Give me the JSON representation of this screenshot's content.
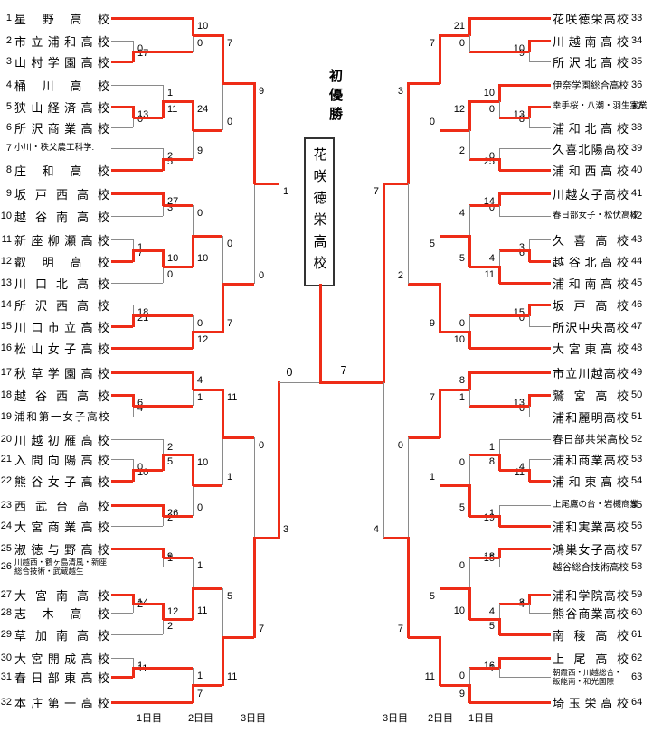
{
  "header": {
    "achievement": "初優勝",
    "champion": "花咲徳栄高校",
    "final_score_left": "0",
    "final_score_right": "7",
    "final_winner": "right"
  },
  "colors": {
    "winner": "#ee2c17",
    "line": "#8a8a8a",
    "text": "#000000"
  },
  "days": {
    "left": [
      "1日目",
      "2日目",
      "3日目"
    ],
    "right": [
      "3日目",
      "2日目",
      "1日目"
    ]
  },
  "teams": [
    {
      "num": "1",
      "name": "星野高校"
    },
    {
      "num": "2",
      "name": "市立浦和高校"
    },
    {
      "num": "3",
      "name": "山村学園高校"
    },
    {
      "num": "4",
      "name": "桶川高校"
    },
    {
      "num": "5",
      "name": "狭山経済高校"
    },
    {
      "num": "6",
      "name": "所沢商業高校"
    },
    {
      "num": "7",
      "name": "小川・秩父農工科学.",
      "small": true
    },
    {
      "num": "8",
      "name": "庄和高校"
    },
    {
      "num": "9",
      "name": "坂戸西高校"
    },
    {
      "num": "10",
      "name": "越谷南高校"
    },
    {
      "num": "11",
      "name": "新座柳瀬高校"
    },
    {
      "num": "12",
      "name": "叡明高校"
    },
    {
      "num": "13",
      "name": "川口北高校"
    },
    {
      "num": "14",
      "name": "所沢西高校"
    },
    {
      "num": "15",
      "name": "川口市立高校"
    },
    {
      "num": "16",
      "name": "松山女子高校"
    },
    {
      "num": "17",
      "name": "秋草学園高校"
    },
    {
      "num": "18",
      "name": "越谷西高校"
    },
    {
      "num": "19",
      "name": "浦和第一女子高校"
    },
    {
      "num": "20",
      "name": "川越初雁高校"
    },
    {
      "num": "21",
      "name": "入間向陽高校"
    },
    {
      "num": "22",
      "name": "熊谷女子高校"
    },
    {
      "num": "23",
      "name": "西武台高校"
    },
    {
      "num": "24",
      "name": "大宮商業高校"
    },
    {
      "num": "25",
      "name": "淑徳与野高校"
    },
    {
      "num": "26",
      "name": "川越西・鶴ヶ島清風・新座総合技術・武蔵越生",
      "lines": [
        "川越西・鶴ヶ島清風・新座",
        "総合技術・武蔵越生"
      ]
    },
    {
      "num": "27",
      "name": "大宮南高校"
    },
    {
      "num": "28",
      "name": "志木高校"
    },
    {
      "num": "29",
      "name": "草加南高校"
    },
    {
      "num": "30",
      "name": "大宮開成高校"
    },
    {
      "num": "31",
      "name": "春日部東高校"
    },
    {
      "num": "32",
      "name": "本庄第一高校"
    },
    {
      "num": "33",
      "name": "花咲徳栄高校"
    },
    {
      "num": "34",
      "name": "川越南高校"
    },
    {
      "num": "35",
      "name": "所沢北高校"
    },
    {
      "num": "36",
      "name": "伊奈学園総合高校"
    },
    {
      "num": "37",
      "name": "幸手桜・八潮・羽生実業",
      "small": true
    },
    {
      "num": "38",
      "name": "浦和北高校"
    },
    {
      "num": "39",
      "name": "久喜北陽高校"
    },
    {
      "num": "40",
      "name": "浦和西高校"
    },
    {
      "num": "41",
      "name": "川越女子高校"
    },
    {
      "num": "42",
      "name": "春日部女子・松伏高校",
      "small": true
    },
    {
      "num": "43",
      "name": "久喜高校"
    },
    {
      "num": "44",
      "name": "越谷北高校"
    },
    {
      "num": "45",
      "name": "浦和南高校"
    },
    {
      "num": "46",
      "name": "坂戸高校"
    },
    {
      "num": "47",
      "name": "所沢中央高校"
    },
    {
      "num": "48",
      "name": "大宮東高校"
    },
    {
      "num": "49",
      "name": "市立川越高校"
    },
    {
      "num": "50",
      "name": "鷲宮高校"
    },
    {
      "num": "51",
      "name": "浦和麗明高校"
    },
    {
      "num": "52",
      "name": "春日部共栄高校"
    },
    {
      "num": "53",
      "name": "浦和商業高校"
    },
    {
      "num": "54",
      "name": "浦和東高校"
    },
    {
      "num": "55",
      "name": "上尾鷹の台・岩槻商業",
      "small": true
    },
    {
      "num": "56",
      "name": "浦和実業高校"
    },
    {
      "num": "57",
      "name": "鴻巣女子高校"
    },
    {
      "num": "58",
      "name": "越谷総合技術高校"
    },
    {
      "num": "59",
      "name": "浦和学院高校"
    },
    {
      "num": "60",
      "name": "熊谷商業高校"
    },
    {
      "num": "61",
      "name": "南稜高校"
    },
    {
      "num": "62",
      "name": "上尾高校"
    },
    {
      "num": "63",
      "name": "朝霞西・川越総合・飯能南・和光国際",
      "lines": [
        "朝霞西・川越総合・",
        "飯能南・和光国際"
      ]
    },
    {
      "num": "64",
      "name": "埼玉栄高校"
    }
  ],
  "matches": [
    {
      "id": "m1",
      "side": "L",
      "r": 1,
      "top": "t2",
      "bot": "t3",
      "s_top": "0",
      "s_bot": "17",
      "win": "bot"
    },
    {
      "id": "m2",
      "side": "L",
      "r": 3,
      "top": "t1",
      "bot": "m1",
      "s_top": "10",
      "s_bot": "0",
      "win": "top"
    },
    {
      "id": "m3",
      "side": "L",
      "r": 1,
      "top": "t5",
      "bot": "t6",
      "s_top": "13",
      "s_bot": "0",
      "win": "top"
    },
    {
      "id": "m4",
      "side": "L",
      "r": 2,
      "top": "t4",
      "bot": "m3",
      "s_top": "1",
      "s_bot": "11",
      "win": "bot"
    },
    {
      "id": "m5",
      "side": "L",
      "r": 2,
      "top": "t7",
      "bot": "t8",
      "s_top": "2",
      "s_bot": "5",
      "win": "bot"
    },
    {
      "id": "m6",
      "side": "L",
      "r": 3,
      "top": "m4",
      "bot": "m5",
      "s_top": "24",
      "s_bot": "9",
      "win": "top"
    },
    {
      "id": "m7",
      "side": "L",
      "r": 4,
      "top": "m2",
      "bot": "m6",
      "s_top": "7",
      "s_bot": "0",
      "win": "top"
    },
    {
      "id": "m8",
      "side": "L",
      "r": 2,
      "top": "t9",
      "bot": "t10",
      "s_top": "27",
      "s_bot": "3",
      "win": "top"
    },
    {
      "id": "m9",
      "side": "L",
      "r": 1,
      "top": "t11",
      "bot": "t12",
      "s_top": "1",
      "s_bot": "7",
      "win": "bot"
    },
    {
      "id": "m10",
      "side": "L",
      "r": 2,
      "top": "m9",
      "bot": "t13",
      "s_top": "10",
      "s_bot": "0",
      "win": "top"
    },
    {
      "id": "m11",
      "side": "L",
      "r": 3,
      "top": "m8",
      "bot": "m10",
      "s_top": "0",
      "s_bot": "10",
      "win": "bot"
    },
    {
      "id": "m12",
      "side": "L",
      "r": 1,
      "top": "t14",
      "bot": "t15",
      "s_top": "18",
      "s_bot": "21",
      "win": "bot"
    },
    {
      "id": "m13",
      "side": "L",
      "r": 3,
      "top": "m12",
      "bot": "t16",
      "s_top": "0",
      "s_bot": "12",
      "win": "bot"
    },
    {
      "id": "m14",
      "side": "L",
      "r": 4,
      "top": "m11",
      "bot": "m13",
      "s_top": "0",
      "s_bot": "7",
      "win": "bot"
    },
    {
      "id": "m15",
      "side": "L",
      "r": 5,
      "top": "m7",
      "bot": "m14",
      "s_top": "9",
      "s_bot": "0",
      "win": "top"
    },
    {
      "id": "m16",
      "side": "L",
      "r": 1,
      "top": "t18",
      "bot": "t19",
      "s_top": "6",
      "s_bot": "4",
      "win": "top"
    },
    {
      "id": "m17",
      "side": "L",
      "r": 3,
      "top": "t17",
      "bot": "m16",
      "s_top": "4",
      "s_bot": "1",
      "win": "top"
    },
    {
      "id": "m18",
      "side": "L",
      "r": 1,
      "top": "t21",
      "bot": "t22",
      "s_top": "0",
      "s_bot": "10",
      "win": "bot"
    },
    {
      "id": "m19",
      "side": "L",
      "r": 2,
      "top": "t20",
      "bot": "m18",
      "s_top": "2",
      "s_bot": "5",
      "win": "bot"
    },
    {
      "id": "m20",
      "side": "L",
      "r": 2,
      "top": "t23",
      "bot": "t24",
      "s_top": "26",
      "s_bot": "2",
      "win": "top"
    },
    {
      "id": "m21",
      "side": "L",
      "r": 3,
      "top": "m19",
      "bot": "m20",
      "s_top": "10",
      "s_bot": "0",
      "win": "top"
    },
    {
      "id": "m22",
      "side": "L",
      "r": 4,
      "top": "m17",
      "bot": "m21",
      "s_top": "11",
      "s_bot": "1",
      "win": "top"
    },
    {
      "id": "m23",
      "side": "L",
      "r": 2,
      "top": "t25",
      "bot": "t26",
      "s_top": "9",
      "s_bot": "1",
      "win": "top"
    },
    {
      "id": "m24",
      "side": "L",
      "r": 1,
      "top": "t27",
      "bot": "t28",
      "s_top": "14",
      "s_bot": "2",
      "win": "top"
    },
    {
      "id": "m25",
      "side": "L",
      "r": 2,
      "top": "m24",
      "bot": "t29",
      "s_top": "12",
      "s_bot": "2",
      "win": "top"
    },
    {
      "id": "m26",
      "side": "L",
      "r": 3,
      "top": "m23",
      "bot": "m25",
      "s_top": "1",
      "s_bot": "11",
      "win": "bot"
    },
    {
      "id": "m27",
      "side": "L",
      "r": 1,
      "top": "t30",
      "bot": "t31",
      "s_top": "1",
      "s_bot": "11",
      "win": "bot"
    },
    {
      "id": "m28",
      "side": "L",
      "r": 3,
      "top": "m27",
      "bot": "t32",
      "s_top": "1",
      "s_bot": "7",
      "win": "bot"
    },
    {
      "id": "m29",
      "side": "L",
      "r": 4,
      "top": "m26",
      "bot": "m28",
      "s_top": "5",
      "s_bot": "11",
      "win": "bot"
    },
    {
      "id": "m30",
      "side": "L",
      "r": 5,
      "top": "m22",
      "bot": "m29",
      "s_top": "0",
      "s_bot": "7",
      "win": "bot"
    },
    {
      "id": "m31",
      "side": "L",
      "r": 6,
      "top": "m15",
      "bot": "m30",
      "s_top": "1",
      "s_bot": "3",
      "win": "bot",
      "to_final": true
    },
    {
      "id": "n1",
      "side": "R",
      "r": 1,
      "top": "t34",
      "bot": "t35",
      "s_top": "10",
      "s_bot": "9",
      "win": "top"
    },
    {
      "id": "n2",
      "side": "R",
      "r": 3,
      "top": "t33",
      "bot": "n1",
      "s_top": "21",
      "s_bot": "0",
      "win": "top"
    },
    {
      "id": "n3",
      "side": "R",
      "r": 1,
      "top": "t37",
      "bot": "t38",
      "s_top": "13",
      "s_bot": "8",
      "win": "top"
    },
    {
      "id": "n4",
      "side": "R",
      "r": 2,
      "top": "t36",
      "bot": "n3",
      "s_top": "10",
      "s_bot": "0",
      "win": "top"
    },
    {
      "id": "n5",
      "side": "R",
      "r": 2,
      "top": "t39",
      "bot": "t40",
      "s_top": "0",
      "s_bot": "25",
      "win": "bot"
    },
    {
      "id": "n6",
      "side": "R",
      "r": 3,
      "top": "n4",
      "bot": "n5",
      "s_top": "12",
      "s_bot": "2",
      "win": "top"
    },
    {
      "id": "n7",
      "side": "R",
      "r": 4,
      "top": "n2",
      "bot": "n6",
      "s_top": "7",
      "s_bot": "0",
      "win": "top"
    },
    {
      "id": "n8",
      "side": "R",
      "r": 2,
      "top": "t41",
      "bot": "t42",
      "s_top": "14",
      "s_bot": "0",
      "win": "top"
    },
    {
      "id": "n9",
      "side": "R",
      "r": 1,
      "top": "t43",
      "bot": "t44",
      "s_top": "3",
      "s_bot": "6",
      "win": "bot"
    },
    {
      "id": "n10",
      "side": "R",
      "r": 2,
      "top": "n9",
      "bot": "t45",
      "s_top": "4",
      "s_bot": "11",
      "win": "bot"
    },
    {
      "id": "n11",
      "side": "R",
      "r": 3,
      "top": "n8",
      "bot": "n10",
      "s_top": "4",
      "s_bot": "5",
      "win": "bot"
    },
    {
      "id": "n12",
      "side": "R",
      "r": 1,
      "top": "t46",
      "bot": "t47",
      "s_top": "15",
      "s_bot": "0",
      "win": "top"
    },
    {
      "id": "n13",
      "side": "R",
      "r": 3,
      "top": "n12",
      "bot": "t48",
      "s_top": "0",
      "s_bot": "10",
      "win": "bot"
    },
    {
      "id": "n14",
      "side": "R",
      "r": 4,
      "top": "n11",
      "bot": "n13",
      "s_top": "5",
      "s_bot": "9",
      "win": "bot"
    },
    {
      "id": "n15",
      "side": "R",
      "r": 5,
      "top": "n7",
      "bot": "n14",
      "s_top": "3",
      "s_bot": "2",
      "win": "top"
    },
    {
      "id": "n16",
      "side": "R",
      "r": 1,
      "top": "t50",
      "bot": "t51",
      "s_top": "13",
      "s_bot": "6",
      "win": "top"
    },
    {
      "id": "n17",
      "side": "R",
      "r": 3,
      "top": "t49",
      "bot": "n16",
      "s_top": "8",
      "s_bot": "1",
      "win": "top"
    },
    {
      "id": "n18",
      "side": "R",
      "r": 1,
      "top": "t53",
      "bot": "t54",
      "s_top": "4",
      "s_bot": "11",
      "win": "bot"
    },
    {
      "id": "n19",
      "side": "R",
      "r": 2,
      "top": "t52",
      "bot": "n18",
      "s_top": "1",
      "s_bot": "8",
      "win": "bot"
    },
    {
      "id": "n20",
      "side": "R",
      "r": 2,
      "top": "t55",
      "bot": "t56",
      "s_top": "1",
      "s_bot": "19",
      "win": "bot"
    },
    {
      "id": "n21",
      "side": "R",
      "r": 3,
      "top": "n19",
      "bot": "n20",
      "s_top": "0",
      "s_bot": "5",
      "win": "bot"
    },
    {
      "id": "n22",
      "side": "R",
      "r": 4,
      "top": "n17",
      "bot": "n21",
      "s_top": "7",
      "s_bot": "1",
      "win": "top"
    },
    {
      "id": "n23",
      "side": "R",
      "r": 2,
      "top": "t57",
      "bot": "t58",
      "s_top": "18",
      "s_bot": "15",
      "win": "top"
    },
    {
      "id": "n24",
      "side": "R",
      "r": 1,
      "top": "t59",
      "bot": "t60",
      "s_top": "8",
      "s_bot": "4",
      "win": "top"
    },
    {
      "id": "n25",
      "side": "R",
      "r": 2,
      "top": "n24",
      "bot": "t61",
      "s_top": "4",
      "s_bot": "5",
      "win": "bot"
    },
    {
      "id": "n26",
      "side": "R",
      "r": 3,
      "top": "n23",
      "bot": "n25",
      "s_top": "0",
      "s_bot": "10",
      "win": "bot"
    },
    {
      "id": "n27",
      "side": "R",
      "r": 2,
      "top": "t62",
      "bot": "t63",
      "s_top": "16",
      "s_bot": "1",
      "win": "top"
    },
    {
      "id": "n28",
      "side": "R",
      "r": 3,
      "top": "n27",
      "bot": "t64",
      "s_top": "0",
      "s_bot": "9",
      "win": "bot"
    },
    {
      "id": "n29",
      "side": "R",
      "r": 4,
      "top": "n26",
      "bot": "n28",
      "s_top": "5",
      "s_bot": "11",
      "win": "bot"
    },
    {
      "id": "n30",
      "side": "R",
      "r": 5,
      "top": "n22",
      "bot": "n29",
      "s_top": "0",
      "s_bot": "7",
      "win": "bot"
    },
    {
      "id": "n31",
      "side": "R",
      "r": 6,
      "top": "n15",
      "bot": "n30",
      "s_top": "7",
      "s_bot": "4",
      "win": "top",
      "to_final": true
    }
  ],
  "final": {
    "left_semi": "m31",
    "right_semi": "n31"
  }
}
